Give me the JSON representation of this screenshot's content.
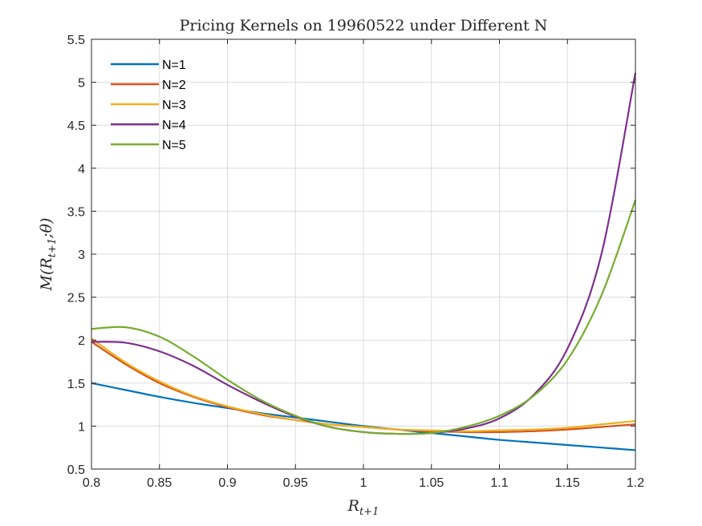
{
  "chart_data": {
    "type": "line",
    "title": "Pricing Kernels on 19960522 under Different N",
    "xlabel_main": "R",
    "xlabel_sub": "t+1",
    "ylabel": "M(R_{t+1};θ)",
    "ylabel_main": "M(R",
    "ylabel_sub": "t+1",
    "ylabel_tail": ";θ)",
    "xlim": [
      0.8,
      1.2
    ],
    "ylim": [
      0.5,
      5.5
    ],
    "xticks": [
      "0.8",
      "0.85",
      "0.9",
      "0.95",
      "1",
      "1.05",
      "1.1",
      "1.15",
      "1.2"
    ],
    "yticks": [
      "0.5",
      "1",
      "1.5",
      "2",
      "2.5",
      "3",
      "3.5",
      "4",
      "4.5",
      "5",
      "5.5"
    ],
    "grid": true,
    "legend_position": "top-left",
    "x": [
      0.8,
      0.825,
      0.85,
      0.875,
      0.9,
      0.925,
      0.95,
      0.975,
      1.0,
      1.025,
      1.05,
      1.075,
      1.1,
      1.125,
      1.15,
      1.175,
      1.2
    ],
    "series": [
      {
        "name": "N=1",
        "color": "#0072BD",
        "values": [
          1.5,
          1.42,
          1.34,
          1.27,
          1.21,
          1.15,
          1.1,
          1.05,
          1.0,
          0.96,
          0.92,
          0.88,
          0.84,
          0.81,
          0.78,
          0.75,
          0.72
        ]
      },
      {
        "name": "N=2",
        "color": "#D95319",
        "values": [
          1.98,
          1.72,
          1.5,
          1.34,
          1.22,
          1.13,
          1.07,
          1.02,
          0.99,
          0.96,
          0.94,
          0.93,
          0.93,
          0.94,
          0.96,
          0.99,
          1.02
        ]
      },
      {
        "name": "N=3",
        "color": "#EDB120",
        "values": [
          2.02,
          1.74,
          1.52,
          1.35,
          1.23,
          1.14,
          1.07,
          1.02,
          0.99,
          0.96,
          0.95,
          0.94,
          0.95,
          0.96,
          0.98,
          1.02,
          1.06
        ]
      },
      {
        "name": "N=4",
        "color": "#7E2F8E",
        "values": [
          1.98,
          1.97,
          1.87,
          1.7,
          1.48,
          1.28,
          1.11,
          0.99,
          0.93,
          0.91,
          0.92,
          0.97,
          1.09,
          1.36,
          1.9,
          3.0,
          5.11
        ]
      },
      {
        "name": "N=5",
        "color": "#77AC30",
        "values": [
          2.13,
          2.15,
          2.04,
          1.81,
          1.54,
          1.3,
          1.12,
          0.99,
          0.93,
          0.91,
          0.92,
          0.99,
          1.12,
          1.35,
          1.77,
          2.52,
          3.63
        ]
      }
    ]
  }
}
